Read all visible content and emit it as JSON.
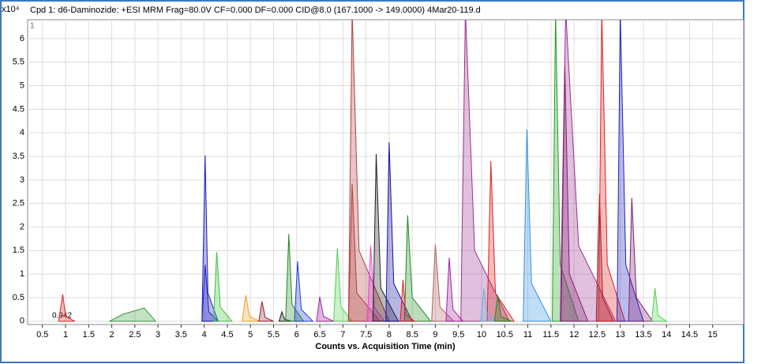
{
  "chart_data": {
    "type": "area",
    "title": "Cpd 1: d6-Daminozide: +ESI MRM Frag=80.0V CF=0.000 DF=0.000 CID@8.0 (167.1000 -> 149.0000) 4Mar20-119.d",
    "y_unit_label": "x10⁴",
    "trace_label": "1",
    "annotation": "0.942",
    "x_label": "Counts vs. Acquisition Time (min)",
    "xlim": [
      0.18,
      15.67
    ],
    "ylim": [
      -0.07,
      6.4
    ],
    "xticks": [
      0.5,
      1,
      1.5,
      2,
      2.5,
      3,
      3.5,
      4,
      4.5,
      5,
      5.5,
      6,
      6.5,
      7,
      7.5,
      8,
      8.5,
      9,
      9.5,
      10,
      10.5,
      11,
      11.5,
      12,
      12.5,
      13,
      13.5,
      14,
      14.5,
      15
    ],
    "yticks": [
      0,
      0.5,
      1,
      1.5,
      2,
      2.5,
      3,
      3.5,
      4,
      4.5,
      5,
      5.5,
      6
    ],
    "grid": true,
    "series": [
      {
        "color": "#e02020",
        "x": [
          0.85,
          0.94,
          1.0,
          1.2
        ],
        "values": [
          0,
          0.57,
          0.1,
          0
        ]
      },
      {
        "color": "#3a9a3a",
        "x": [
          1.95,
          2.25,
          2.7,
          2.95
        ],
        "values": [
          0,
          0.15,
          0.28,
          0
        ]
      },
      {
        "color": "#2020c0",
        "x": [
          3.95,
          4.02,
          4.08,
          4.3
        ],
        "values": [
          0,
          3.52,
          0.6,
          0
        ]
      },
      {
        "color": "#2020c0",
        "x": [
          3.95,
          4.02,
          4.1,
          4.3
        ],
        "values": [
          0,
          1.2,
          0.2,
          0
        ]
      },
      {
        "color": "#40c040",
        "x": [
          4.2,
          4.27,
          4.35,
          4.6
        ],
        "values": [
          0,
          1.47,
          0.3,
          0
        ]
      },
      {
        "color": "#f0a020",
        "x": [
          4.82,
          4.9,
          4.98,
          5.2
        ],
        "values": [
          0,
          0.55,
          0.1,
          0
        ]
      },
      {
        "color": "#902030",
        "x": [
          5.18,
          5.25,
          5.32,
          5.5
        ],
        "values": [
          0,
          0.42,
          0.08,
          0
        ]
      },
      {
        "color": "#202020",
        "x": [
          5.62,
          5.68,
          5.74,
          5.9
        ],
        "values": [
          0,
          0.2,
          0.04,
          0
        ]
      },
      {
        "color": "#208a20",
        "x": [
          5.76,
          5.83,
          5.9,
          6.15
        ],
        "values": [
          0,
          1.85,
          0.35,
          0
        ]
      },
      {
        "color": "#2040d0",
        "x": [
          5.95,
          6.02,
          6.1,
          6.35
        ],
        "values": [
          0,
          1.27,
          0.25,
          0
        ]
      },
      {
        "color": "#a020a0",
        "x": [
          6.43,
          6.5,
          6.58,
          6.8
        ],
        "values": [
          0,
          0.52,
          0.1,
          0
        ]
      },
      {
        "color": "#50d050",
        "x": [
          6.8,
          6.88,
          6.96,
          7.2
        ],
        "values": [
          0,
          1.55,
          0.3,
          0
        ]
      },
      {
        "color": "#b04040",
        "x": [
          7.12,
          7.2,
          7.35,
          8.0
        ],
        "values": [
          0,
          6.6,
          1.5,
          0
        ]
      },
      {
        "color": "#b04040",
        "x": [
          7.12,
          7.2,
          7.3,
          7.8
        ],
        "values": [
          0,
          2.92,
          0.6,
          0
        ]
      },
      {
        "color": "#e040e0",
        "x": [
          7.53,
          7.6,
          7.68,
          7.9
        ],
        "values": [
          0,
          1.6,
          0.3,
          0
        ]
      },
      {
        "color": "#202020",
        "x": [
          7.65,
          7.72,
          7.82,
          8.2
        ],
        "values": [
          0,
          3.55,
          0.7,
          0
        ]
      },
      {
        "color": "#1010a0",
        "x": [
          7.93,
          8.0,
          8.1,
          8.5
        ],
        "values": [
          0,
          3.8,
          0.8,
          0
        ]
      },
      {
        "color": "#208a20",
        "x": [
          8.33,
          8.4,
          8.5,
          8.9
        ],
        "values": [
          0,
          2.25,
          0.5,
          0
        ]
      },
      {
        "color": "#e02020",
        "x": [
          8.24,
          8.3,
          8.36,
          8.55
        ],
        "values": [
          0,
          0.88,
          0.15,
          0
        ]
      },
      {
        "color": "#b06060",
        "x": [
          8.92,
          9.0,
          9.1,
          9.4
        ],
        "values": [
          0,
          1.63,
          0.3,
          0
        ]
      },
      {
        "color": "#a020a0",
        "x": [
          9.23,
          9.3,
          9.38,
          9.6
        ],
        "values": [
          0,
          1.35,
          0.25,
          0
        ]
      },
      {
        "color": "#9a3090",
        "x": [
          9.55,
          9.65,
          9.85,
          10.6
        ],
        "values": [
          0,
          6.6,
          1.5,
          0
        ]
      },
      {
        "color": "#e02020",
        "x": [
          10.12,
          10.2,
          10.3,
          10.7
        ],
        "values": [
          0,
          3.4,
          0.6,
          0
        ]
      },
      {
        "color": "#70b0e0",
        "x": [
          9.98,
          10.05,
          10.12,
          10.35
        ],
        "values": [
          0,
          0.7,
          0.15,
          0
        ]
      },
      {
        "color": "#208a20",
        "x": [
          10.28,
          10.35,
          10.42,
          10.65
        ],
        "values": [
          0,
          0.55,
          0.1,
          0
        ]
      },
      {
        "color": "#3090e0",
        "x": [
          10.9,
          10.98,
          11.08,
          11.5
        ],
        "values": [
          0,
          4.07,
          0.8,
          0
        ]
      },
      {
        "color": "#20a020",
        "x": [
          11.53,
          11.6,
          11.7,
          12.1
        ],
        "values": [
          0,
          6.6,
          1.2,
          0
        ]
      },
      {
        "color": "#9a3090",
        "x": [
          11.7,
          11.82,
          12.1,
          12.9
        ],
        "values": [
          0,
          6.6,
          1.6,
          0
        ]
      },
      {
        "color": "#802070",
        "x": [
          11.72,
          11.8,
          11.9,
          12.3
        ],
        "values": [
          0,
          5.42,
          1.0,
          0
        ]
      },
      {
        "color": "#902030",
        "x": [
          12.48,
          12.55,
          12.62,
          12.85
        ],
        "values": [
          0,
          2.7,
          0.5,
          0
        ]
      },
      {
        "color": "#e02020",
        "x": [
          12.53,
          12.6,
          12.72,
          13.1
        ],
        "values": [
          0,
          6.6,
          1.2,
          0
        ]
      },
      {
        "color": "#2020c0",
        "x": [
          12.93,
          13.0,
          13.12,
          13.5
        ],
        "values": [
          0,
          6.6,
          1.2,
          0
        ]
      },
      {
        "color": "#802070",
        "x": [
          13.18,
          13.25,
          13.35,
          13.7
        ],
        "values": [
          0,
          2.62,
          0.5,
          0
        ]
      },
      {
        "color": "#50d050",
        "x": [
          13.68,
          13.75,
          13.82,
          14.0
        ],
        "values": [
          0,
          0.7,
          0.12,
          0
        ]
      }
    ]
  }
}
